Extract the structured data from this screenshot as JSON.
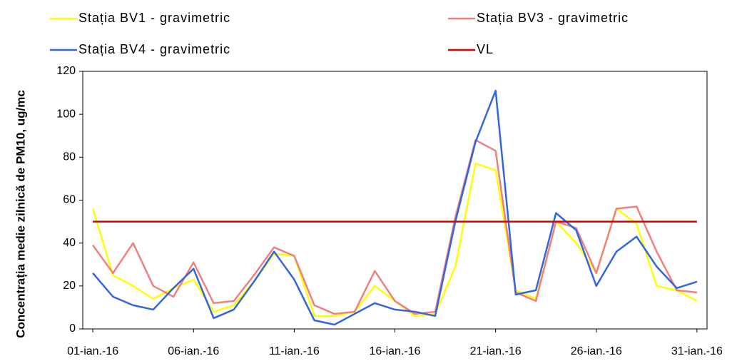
{
  "chart_data": {
    "type": "line",
    "y_label": "Concentrația medie zilnică de PM10, ug/mc",
    "categories": [
      "01-ian.-16",
      null,
      null,
      null,
      null,
      "06-ian.-16",
      null,
      null,
      null,
      null,
      "11-ian.-16",
      null,
      null,
      null,
      null,
      "16-ian.-16",
      null,
      null,
      null,
      null,
      "21-ian.-16",
      null,
      null,
      null,
      null,
      "26-ian.-16",
      null,
      null,
      null,
      null,
      "31-ian.-16"
    ],
    "series": [
      {
        "name": "Stația BV1 - gravimetric",
        "color": "#ffff00",
        "values": [
          56,
          25,
          20,
          14,
          19,
          23,
          8,
          11,
          22,
          35,
          34,
          6,
          6,
          8,
          20,
          13,
          6,
          7,
          29,
          77,
          74,
          18,
          14,
          50,
          40,
          26,
          56,
          49,
          20,
          18,
          13
        ]
      },
      {
        "name": "Stația BV3 - gravimetric",
        "color": "#f08080",
        "values": [
          39,
          26,
          40,
          20,
          15,
          31,
          12,
          13,
          25,
          38,
          34,
          11,
          7,
          8,
          27,
          13,
          7,
          8,
          52,
          88,
          83,
          17,
          13,
          50,
          47,
          26,
          56,
          57,
          36,
          18,
          17
        ]
      },
      {
        "name": "Stația BV4 - gravimetric",
        "color": "#3366dd",
        "values": [
          26,
          15,
          11,
          9,
          19,
          28,
          5,
          9,
          22,
          36,
          23,
          4,
          2,
          7,
          12,
          9,
          8,
          6,
          50,
          87,
          111,
          16,
          18,
          54,
          46,
          20,
          36,
          43,
          29,
          19,
          22
        ]
      },
      {
        "name": "VL",
        "color": "#dd0000",
        "values": [
          50,
          50,
          50,
          50,
          50,
          50,
          50,
          50,
          50,
          50,
          50,
          50,
          50,
          50,
          50,
          50,
          50,
          50,
          50,
          50,
          50,
          50,
          50,
          50,
          50,
          50,
          50,
          50,
          50,
          50,
          50
        ]
      }
    ],
    "ylim": [
      0,
      120
    ],
    "yticks": [
      0,
      20,
      40,
      60,
      80,
      100,
      120
    ]
  }
}
